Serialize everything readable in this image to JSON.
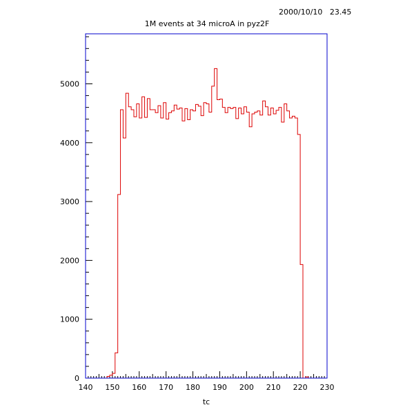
{
  "timestamp": "2000/10/10   23.45",
  "chart_data": {
    "type": "histogram",
    "title": "1M events at 34 microA in pyz2F",
    "xlabel": "tc",
    "ylabel": "",
    "xlim": [
      140,
      230
    ],
    "ylim": [
      0,
      5850
    ],
    "xticks": [
      140,
      150,
      160,
      170,
      180,
      190,
      200,
      210,
      220,
      230
    ],
    "yticks": [
      0,
      1000,
      2000,
      3000,
      4000,
      5000
    ],
    "bin_width": 1,
    "bin_start": 140,
    "values": [
      0,
      0,
      0,
      0,
      0,
      0,
      0,
      0,
      30,
      50,
      80,
      430,
      3120,
      4560,
      4080,
      4840,
      4610,
      4560,
      4440,
      4660,
      4420,
      4780,
      4430,
      4750,
      4560,
      4560,
      4510,
      4630,
      4420,
      4680,
      4400,
      4510,
      4540,
      4640,
      4570,
      4590,
      4370,
      4580,
      4390,
      4560,
      4540,
      4650,
      4620,
      4460,
      4680,
      4660,
      4520,
      4960,
      5260,
      4730,
      4740,
      4600,
      4510,
      4600,
      4580,
      4600,
      4410,
      4590,
      4490,
      4610,
      4520,
      4270,
      4490,
      4520,
      4540,
      4470,
      4710,
      4610,
      4470,
      4590,
      4490,
      4550,
      4600,
      4350,
      4660,
      4540,
      4420,
      4450,
      4420,
      4140,
      1930,
      0,
      20,
      0,
      0,
      0,
      0,
      0,
      0,
      0
    ],
    "frame_color": "#0000cc",
    "line_color": "#dd0000"
  }
}
